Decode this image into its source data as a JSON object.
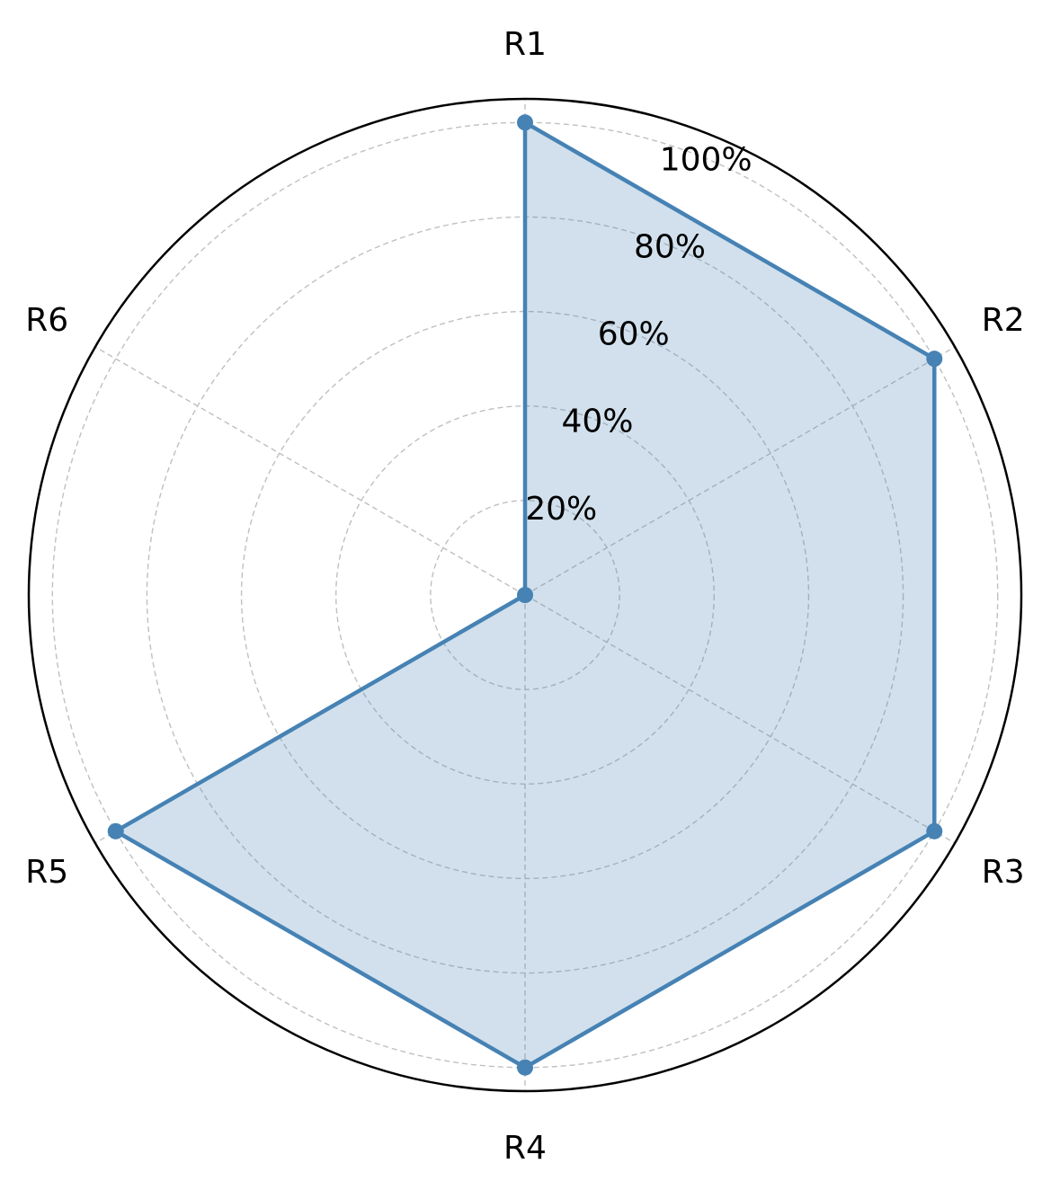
{
  "chart_data": {
    "type": "radar",
    "categories": [
      "R1",
      "R2",
      "R3",
      "R4",
      "R5",
      "R6"
    ],
    "series": [
      {
        "values": [
          100,
          100,
          100,
          100,
          100,
          0
        ],
        "color": "#4682b4",
        "fill_color": "#4682b4",
        "fill_opacity": 0.25
      }
    ],
    "radial_ticks": [
      20,
      40,
      60,
      80,
      100
    ],
    "radial_tick_labels": [
      "20%",
      "40%",
      "60%",
      "80%",
      "100%"
    ],
    "rlim": [
      0,
      105
    ],
    "grid": true
  }
}
